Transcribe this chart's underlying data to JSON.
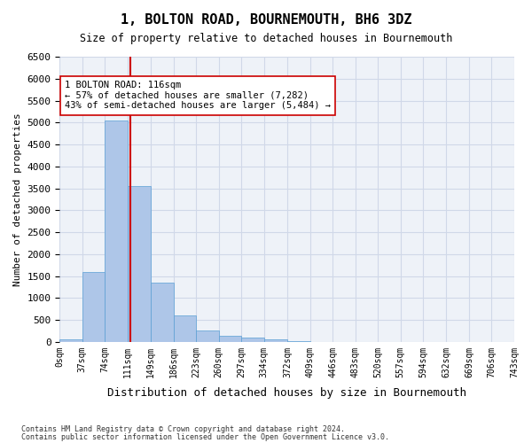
{
  "title": "1, BOLTON ROAD, BOURNEMOUTH, BH6 3DZ",
  "subtitle": "Size of property relative to detached houses in Bournemouth",
  "xlabel": "Distribution of detached houses by size in Bournemouth",
  "ylabel": "Number of detached properties",
  "footer_line1": "Contains HM Land Registry data © Crown copyright and database right 2024.",
  "footer_line2": "Contains public sector information licensed under the Open Government Licence v3.0.",
  "bins": [
    0,
    37,
    74,
    111,
    149,
    186,
    223,
    260,
    297,
    334,
    372,
    409,
    446,
    483,
    520,
    557,
    594,
    632,
    669,
    706,
    743
  ],
  "bin_labels": [
    "0sqm",
    "37sqm",
    "74sqm",
    "111sqm",
    "149sqm",
    "186sqm",
    "223sqm",
    "260sqm",
    "297sqm",
    "334sqm",
    "372sqm",
    "409sqm",
    "446sqm",
    "483sqm",
    "520sqm",
    "557sqm",
    "594sqm",
    "632sqm",
    "669sqm",
    "706sqm",
    "743sqm"
  ],
  "bar_values": [
    50,
    1600,
    5050,
    3550,
    1350,
    600,
    250,
    130,
    100,
    50,
    10,
    5,
    5,
    2,
    2,
    1,
    1,
    0,
    0,
    0
  ],
  "bar_color": "#aec6e8",
  "bar_edge_color": "#5a9fd4",
  "grid_color": "#d0d8e8",
  "background_color": "#eef2f8",
  "property_line_x": 116,
  "property_line_color": "#cc0000",
  "annotation_text": "1 BOLTON ROAD: 116sqm\n← 57% of detached houses are smaller (7,282)\n43% of semi-detached houses are larger (5,484) →",
  "annotation_box_color": "#ffffff",
  "annotation_box_edge": "#cc0000",
  "ylim": [
    0,
    6500
  ],
  "yticks": [
    0,
    500,
    1000,
    1500,
    2000,
    2500,
    3000,
    3500,
    4000,
    4500,
    5000,
    5500,
    6000,
    6500
  ]
}
